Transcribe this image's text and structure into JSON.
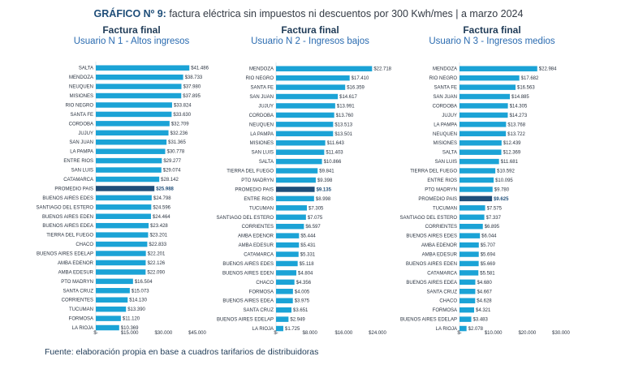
{
  "title": {
    "lead": "GRÁFICO Nº 9:",
    "text": "factura eléctrica sin impuestos ni descuentos por 300 Kwh/mes | a marzo 2024"
  },
  "source": "Fuente: elaboración propia en base a cuadros tarifarios de distribuidoras",
  "colors": {
    "bar": "#1ba3d6",
    "highlight": "#1f4e79",
    "text": "#2a3340"
  },
  "chart_data": [
    {
      "type": "bar",
      "orientation": "horizontal",
      "title": "Factura final",
      "subtitle": "Usuario N 1 - Altos ingresos",
      "highlight": "PROMEDIO PAIS",
      "xlim": [
        0,
        45000
      ],
      "xticks": [
        0,
        15000,
        30000,
        45000
      ],
      "xtick_labels": [
        "$-",
        "$15.000",
        "$30.000",
        "$45.000"
      ],
      "categories": [
        "SALTA",
        "MENDOZA",
        "NEUQUEN",
        "MISIONES",
        "RIO NEGRO",
        "SANTA FE",
        "CORDOBA",
        "JUJUY",
        "SAN JUAN",
        "LA PAMPA",
        "ENTRE RIOS",
        "SAN LUIS",
        "CATAMARCA",
        "PROMEDIO PAIS",
        "BUENOS AIRES EDES",
        "SANTIAGO DEL ESTERO",
        "BUENOS AIRES EDEN",
        "BUENOS AIRES EDEA",
        "TIERRA DEL FUEGO",
        "CHACO",
        "BUENOS AIRES EDELAP",
        "AMBA EDENOR",
        "AMBA EDESUR",
        "PTO MADRYN",
        "SANTA CRUZ",
        "CORRIENTES",
        "TUCUMAN",
        "FORMOSA",
        "LA RIOJA"
      ],
      "values": [
        41486,
        38733,
        37980,
        37895,
        33824,
        33630,
        32709,
        32236,
        31365,
        30778,
        29277,
        29074,
        28142,
        25988,
        24798,
        24596,
        24464,
        23428,
        23201,
        22833,
        22201,
        22126,
        22090,
        16504,
        15073,
        14130,
        13390,
        11120,
        10369
      ],
      "labels": [
        "$41.486",
        "$38.733",
        "$37.980",
        "$37.895",
        "$33.824",
        "$33.630",
        "$32.709",
        "$32.236",
        "$31.365",
        "$30.778",
        "$29.277",
        "$29.074",
        "$28.142",
        "$25.988",
        "$24.798",
        "$24.596",
        "$24.464",
        "$23.428",
        "$23.201",
        "$22.833",
        "$22.201",
        "$22.126",
        "$22.090",
        "$16.504",
        "$15.073",
        "$14.130",
        "$13.390",
        "$11.120",
        "$10.369"
      ]
    },
    {
      "type": "bar",
      "orientation": "horizontal",
      "title": "Factura final",
      "subtitle": "Usuario N 2 - Ingresos bajos",
      "highlight": "PROMEDIO PAIS",
      "xlim": [
        0,
        24000
      ],
      "xticks": [
        0,
        8000,
        16000,
        24000
      ],
      "xtick_labels": [
        "$-",
        "$8.000",
        "$16.000",
        "$24.000"
      ],
      "categories": [
        "MENDOZA",
        "RIO NEGRO",
        "SANTA FE",
        "SAN JUAN",
        "JUJUY",
        "CORDOBA",
        "NEUQUEN",
        "LA PAMPA",
        "MISIONES",
        "SAN LUIS",
        "SALTA",
        "TIERRA DEL FUEGO",
        "PTO MADRYN",
        "PROMEDIO PAIS",
        "ENTRE RIOS",
        "TUCUMAN",
        "SANTIAGO DEL ESTERO",
        "CORRIENTES",
        "AMBA EDENOR",
        "AMBA EDESUR",
        "CATAMARCA",
        "BUENOS AIRES EDES",
        "BUENOS AIRES EDEN",
        "CHACO",
        "FORMOSA",
        "BUENOS AIRES EDEA",
        "SANTA CRUZ",
        "BUENOS AIRES EDELAP",
        "LA RIOJA"
      ],
      "values": [
        22718,
        17410,
        16359,
        14617,
        13991,
        13760,
        13513,
        13501,
        11643,
        11403,
        10866,
        9841,
        9398,
        9135,
        8998,
        7305,
        7075,
        6597,
        5444,
        5431,
        5331,
        5118,
        4804,
        4356,
        4005,
        3975,
        3651,
        2949,
        1725
      ],
      "labels": [
        "$22.718",
        "$17.410",
        "$16.359",
        "$14.617",
        "$13.991",
        "$13.760",
        "$13.513",
        "$13.501",
        "$11.643",
        "$11.403",
        "$10.866",
        "$9.841",
        "$9.398",
        "$9.135",
        "$8.998",
        "$7.305",
        "$7.075",
        "$6.597",
        "$5.444",
        "$5.431",
        "$5.331",
        "$5.118",
        "$4.804",
        "$4.356",
        "$4.005",
        "$3.975",
        "$3.651",
        "$2.949",
        "$1.725"
      ]
    },
    {
      "type": "bar",
      "orientation": "horizontal",
      "title": "Factura final",
      "subtitle": "Usuario N 3 - Ingresos medios",
      "highlight": "PROMEDIO PAIS",
      "xlim": [
        0,
        30000
      ],
      "xticks": [
        0,
        10000,
        20000,
        30000
      ],
      "xtick_labels": [
        "$-",
        "$10.000",
        "$20.000",
        "$30.000"
      ],
      "categories": [
        "MENDOZA",
        "RIO NEGRO",
        "SANTA FE",
        "SAN JUAN",
        "CORDOBA",
        "JUJUY",
        "LA PAMPA",
        "NEUQUEN",
        "MISIONES",
        "SALTA",
        "SAN LUIS",
        "TIERRA DEL FUEGO",
        "ENTRE RIOS",
        "PTO MADRYN",
        "PROMEDIO PAIS",
        "TUCUMAN",
        "SANTIAGO DEL ESTERO",
        "CORRIENTES",
        "BUENOS AIRES EDES",
        "AMBA EDENOR",
        "AMBA EDESUR",
        "BUENOS AIRES EDEN",
        "CATAMARCA",
        "BUENOS AIRES EDEA",
        "SANTA CRUZ",
        "CHACO",
        "FORMOSA",
        "BUENOS AIRES EDELAP",
        "LA RIOJA"
      ],
      "values": [
        22984,
        17682,
        16563,
        14885,
        14305,
        14273,
        13768,
        13722,
        12439,
        12369,
        11681,
        10592,
        10095,
        9780,
        9625,
        7575,
        7337,
        6895,
        6044,
        5707,
        5694,
        5669,
        5581,
        4680,
        4667,
        4628,
        4321,
        3483,
        2078
      ],
      "labels": [
        "$22.984",
        "$17.682",
        "$16.563",
        "$14.885",
        "$14.305",
        "$14.273",
        "$13.768",
        "$13.722",
        "$12.439",
        "$12.369",
        "$11.681",
        "$10.592",
        "$10.095",
        "$9.780",
        "$9.625",
        "$7.575",
        "$7.337",
        "$6.895",
        "$6.044",
        "$5.707",
        "$5.694",
        "$5.669",
        "$5.581",
        "$4.680",
        "$4.667",
        "$4.628",
        "$4.321",
        "$3.483",
        "$2.078"
      ]
    }
  ]
}
